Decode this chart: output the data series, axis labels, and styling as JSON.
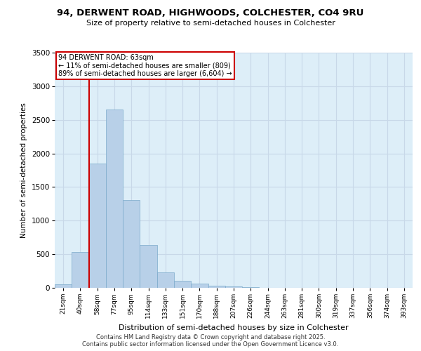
{
  "title_line1": "94, DERWENT ROAD, HIGHWOODS, COLCHESTER, CO4 9RU",
  "title_line2": "Size of property relative to semi-detached houses in Colchester",
  "xlabel": "Distribution of semi-detached houses by size in Colchester",
  "ylabel": "Number of semi-detached properties",
  "categories": [
    "21sqm",
    "40sqm",
    "58sqm",
    "77sqm",
    "95sqm",
    "114sqm",
    "133sqm",
    "151sqm",
    "170sqm",
    "188sqm",
    "207sqm",
    "226sqm",
    "244sqm",
    "263sqm",
    "281sqm",
    "300sqm",
    "319sqm",
    "337sqm",
    "356sqm",
    "374sqm",
    "393sqm"
  ],
  "values": [
    55,
    530,
    1850,
    2650,
    1310,
    640,
    230,
    100,
    65,
    35,
    20,
    15,
    5,
    5,
    5,
    5,
    2,
    2,
    2,
    2,
    2
  ],
  "bar_color": "#b8d0e8",
  "bar_edge_color": "#7aaacb",
  "vline_x": 1.5,
  "vline_color": "#cc0000",
  "annotation_text_line1": "94 DERWENT ROAD: 63sqm",
  "annotation_text_line2": "← 11% of semi-detached houses are smaller (809)",
  "annotation_text_line3": "89% of semi-detached houses are larger (6,604) →",
  "annotation_box_color": "#ffffff",
  "annotation_box_edge": "#cc0000",
  "grid_color": "#c8d8e8",
  "background_color": "#ddeef8",
  "ylim": [
    0,
    3500
  ],
  "yticks": [
    0,
    500,
    1000,
    1500,
    2000,
    2500,
    3000,
    3500
  ],
  "footnote_line1": "Contains HM Land Registry data © Crown copyright and database right 2025.",
  "footnote_line2": "Contains public sector information licensed under the Open Government Licence v3.0."
}
